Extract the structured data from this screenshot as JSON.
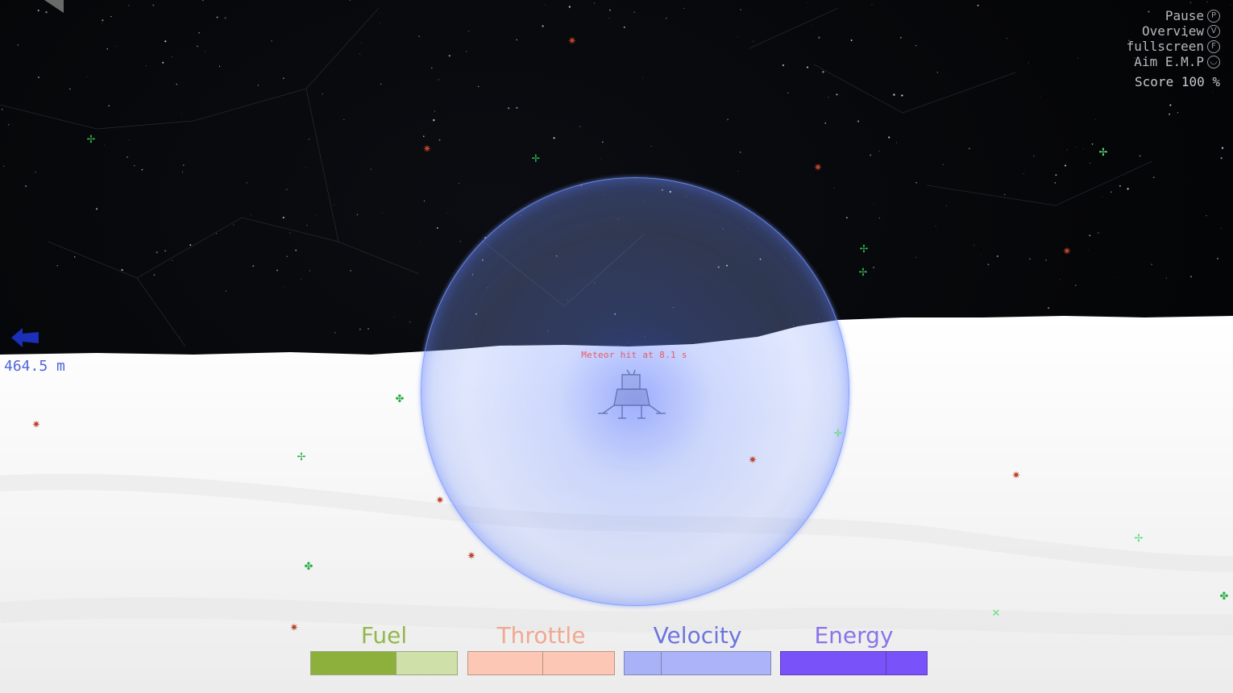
{
  "altitude": {
    "value": "464.5 m"
  },
  "meteor_message": "Meteor hit at 8.1 s",
  "menu": {
    "pause": {
      "label": "Pause",
      "key": "P"
    },
    "overview": {
      "label": "Overview",
      "key": "V"
    },
    "fullscreen": {
      "label": "fullscreen",
      "key": "F"
    },
    "aim_emp": {
      "label": "Aim E.M.P",
      "key": "◡"
    }
  },
  "score": {
    "text": "Score 100 %",
    "value_percent": 100
  },
  "gauges": {
    "fuel": {
      "label": "Fuel",
      "level": 0.58,
      "color_text": "#93b84a",
      "color_fill": "#8db03c",
      "color_track": "#cfe0a8"
    },
    "throttle": {
      "label": "Throttle",
      "level": 0.51,
      "color_text": "#f0a890",
      "color_fill": "#fcc7b5",
      "color_track": "#fcc7b5"
    },
    "velocity": {
      "label": "Velocity",
      "level": 0.25,
      "color_text": "#6d74e0",
      "color_fill": "#a9b1f7",
      "color_track": "#adb3f8"
    },
    "energy": {
      "label": "Energy",
      "level": 0.72,
      "color_text": "#8a74e8",
      "color_fill": "#7a52fa",
      "color_track": "#7a52fa"
    }
  },
  "icons": {
    "lander": "lunar-lander-icon",
    "altitude_arrow": "left-arrow-icon",
    "green_marker": "green-drone-icon",
    "red_marker": "red-meteor-icon"
  }
}
